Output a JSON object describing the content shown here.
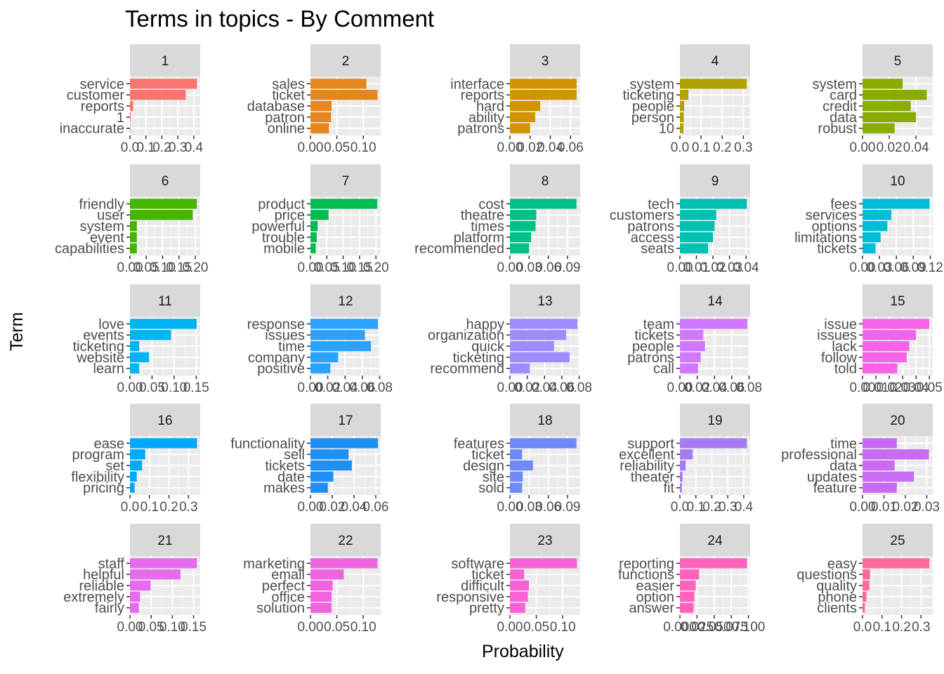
{
  "title": "Terms in topics - By Comment",
  "xlabel": "Probability",
  "ylabel": "Term",
  "chart_data": {
    "type": "bar",
    "orientation": "horizontal",
    "facet_layout": "5 columns x 5 rows, free x scales",
    "title": "Terms in topics - By Comment",
    "xlabel": "Probability",
    "ylabel": "Term",
    "grid": true,
    "legend": "none",
    "facets": [
      {
        "label": "1",
        "color": "#F8766D",
        "xlim": [
          0,
          0.44
        ],
        "terms": [
          "service",
          "customer",
          "reports",
          "1",
          "inaccurate"
        ],
        "values": [
          0.42,
          0.35,
          0.02,
          0.004,
          0.003
        ],
        "ticks": [
          {
            "v": 0,
            "t": "0.0"
          },
          {
            "v": 0.1,
            "t": "0.1"
          },
          {
            "v": 0.2,
            "t": "0.2"
          },
          {
            "v": 0.3,
            "t": "0.3"
          },
          {
            "v": 0.4,
            "t": "0.4"
          }
        ]
      },
      {
        "label": "2",
        "color": "#E7851E",
        "xlim": [
          0,
          0.133
        ],
        "terms": [
          "sales",
          "ticket",
          "database",
          "patron",
          "online"
        ],
        "values": [
          0.106,
          0.127,
          0.04,
          0.039,
          0.035
        ],
        "ticks": [
          {
            "v": 0,
            "t": "0.00"
          },
          {
            "v": 0.05,
            "t": "0.05"
          },
          {
            "v": 0.1,
            "t": "0.10"
          }
        ]
      },
      {
        "label": "3",
        "color": "#D09400",
        "xlim": [
          0,
          0.0695
        ],
        "terms": [
          "interface",
          "reports",
          "hard",
          "ability",
          "patrons"
        ],
        "values": [
          0.066,
          0.066,
          0.03,
          0.025,
          0.02
        ],
        "ticks": [
          {
            "v": 0,
            "t": "0.00"
          },
          {
            "v": 0.02,
            "t": "0.02"
          },
          {
            "v": 0.04,
            "t": "0.04"
          },
          {
            "v": 0.06,
            "t": "0.06"
          }
        ]
      },
      {
        "label": "4",
        "color": "#B2A100",
        "xlim": [
          0,
          0.332
        ],
        "terms": [
          "system",
          "ticketing",
          "people",
          "person",
          "10"
        ],
        "values": [
          0.316,
          0.04,
          0.02,
          0.018,
          0.017
        ],
        "ticks": [
          {
            "v": 0,
            "t": "0.0"
          },
          {
            "v": 0.1,
            "t": "0.1"
          },
          {
            "v": 0.2,
            "t": "0.2"
          },
          {
            "v": 0.3,
            "t": "0.3"
          }
        ]
      },
      {
        "label": "5",
        "color": "#89AC00",
        "xlim": [
          0,
          0.0525
        ],
        "terms": [
          "system",
          "card",
          "credit",
          "data",
          "robust"
        ],
        "values": [
          0.03,
          0.048,
          0.036,
          0.04,
          0.024
        ],
        "ticks": [
          {
            "v": 0,
            "t": "0.00"
          },
          {
            "v": 0.02,
            "t": "0.02"
          },
          {
            "v": 0.04,
            "t": "0.04"
          }
        ]
      },
      {
        "label": "6",
        "color": "#45B500",
        "xlim": [
          0,
          0.215
        ],
        "terms": [
          "friendly",
          "user",
          "system",
          "event",
          "capabilities"
        ],
        "values": [
          0.205,
          0.192,
          0.021,
          0.021,
          0.021
        ],
        "ticks": [
          {
            "v": 0,
            "t": "0.00"
          },
          {
            "v": 0.05,
            "t": "0.05"
          },
          {
            "v": 0.1,
            "t": "0.10"
          },
          {
            "v": 0.15,
            "t": "0.15"
          },
          {
            "v": 0.2,
            "t": "0.20"
          }
        ]
      },
      {
        "label": "7",
        "color": "#00BC51",
        "xlim": [
          0,
          0.2145
        ],
        "terms": [
          "product",
          "price",
          "powerful",
          "trouble",
          "mobile"
        ],
        "values": [
          0.204,
          0.055,
          0.022,
          0.019,
          0.016
        ],
        "ticks": [
          {
            "v": 0,
            "t": "0.00"
          },
          {
            "v": 0.05,
            "t": "0.05"
          },
          {
            "v": 0.1,
            "t": "0.10"
          },
          {
            "v": 0.15,
            "t": "0.15"
          },
          {
            "v": 0.2,
            "t": "0.20"
          }
        ]
      },
      {
        "label": "8",
        "color": "#00C087",
        "xlim": [
          0,
          0.1098
        ],
        "terms": [
          "cost",
          "theatre",
          "times",
          "platform",
          "recommended"
        ],
        "values": [
          0.104,
          0.041,
          0.04,
          0.033,
          0.03
        ],
        "ticks": [
          {
            "v": 0,
            "t": "0.00"
          },
          {
            "v": 0.03,
            "t": "0.03"
          },
          {
            "v": 0.06,
            "t": "0.06"
          },
          {
            "v": 0.09,
            "t": "0.09"
          }
        ]
      },
      {
        "label": "9",
        "color": "#00C0B2",
        "xlim": [
          0,
          0.0425
        ],
        "terms": [
          "tech",
          "customers",
          "patrons",
          "access",
          "seats"
        ],
        "values": [
          0.0405,
          0.022,
          0.021,
          0.02,
          0.017
        ],
        "ticks": [
          {
            "v": 0,
            "t": "0.00"
          },
          {
            "v": 0.01,
            "t": "0.01"
          },
          {
            "v": 0.02,
            "t": "0.02"
          },
          {
            "v": 0.03,
            "t": "0.03"
          },
          {
            "v": 0.04,
            "t": "0.04"
          }
        ]
      },
      {
        "label": "10",
        "color": "#00BCD6",
        "xlim": [
          0,
          0.1245
        ],
        "terms": [
          "fees",
          "services",
          "options",
          "limitations",
          "tickets"
        ],
        "values": [
          0.119,
          0.051,
          0.044,
          0.032,
          0.023
        ],
        "ticks": [
          {
            "v": 0,
            "t": "0.00"
          },
          {
            "v": 0.03,
            "t": "0.03"
          },
          {
            "v": 0.06,
            "t": "0.06"
          },
          {
            "v": 0.09,
            "t": "0.09"
          },
          {
            "v": 0.12,
            "t": "0.12"
          }
        ]
      },
      {
        "label": "11",
        "color": "#00B3F2",
        "xlim": [
          0,
          0.159
        ],
        "terms": [
          "love",
          "events",
          "ticketing",
          "website",
          "learn"
        ],
        "values": [
          0.151,
          0.093,
          0.021,
          0.043,
          0.021
        ],
        "ticks": [
          {
            "v": 0,
            "t": "0.00"
          },
          {
            "v": 0.05,
            "t": "0.05"
          },
          {
            "v": 0.1,
            "t": "0.10"
          },
          {
            "v": 0.15,
            "t": "0.15"
          }
        ]
      },
      {
        "label": "12",
        "color": "#29A3FF",
        "xlim": [
          0,
          0.0812
        ],
        "terms": [
          "response",
          "issues",
          "time",
          "company",
          "positive"
        ],
        "values": [
          0.078,
          0.063,
          0.07,
          0.032,
          0.023
        ],
        "ticks": [
          {
            "v": 0,
            "t": "0.00"
          },
          {
            "v": 0.02,
            "t": "0.02"
          },
          {
            "v": 0.04,
            "t": "0.04"
          },
          {
            "v": 0.06,
            "t": "0.06"
          },
          {
            "v": 0.08,
            "t": "0.08"
          }
        ]
      },
      {
        "label": "13",
        "color": "#9C8DFF",
        "xlim": [
          0,
          0.0812
        ],
        "terms": [
          "happy",
          "organization",
          "quick",
          "ticketing",
          "recommend"
        ],
        "values": [
          0.078,
          0.065,
          0.051,
          0.069,
          0.023
        ],
        "ticks": [
          {
            "v": 0,
            "t": "0.00"
          },
          {
            "v": 0.02,
            "t": "0.02"
          },
          {
            "v": 0.04,
            "t": "0.04"
          },
          {
            "v": 0.06,
            "t": "0.06"
          },
          {
            "v": 0.08,
            "t": "0.08"
          }
        ]
      },
      {
        "label": "14",
        "color": "#D277FF",
        "xlim": [
          0,
          0.0812
        ],
        "terms": [
          "team",
          "tickets",
          "people",
          "patrons",
          "call"
        ],
        "values": [
          0.078,
          0.027,
          0.029,
          0.024,
          0.021
        ],
        "ticks": [
          {
            "v": 0,
            "t": "0.00"
          },
          {
            "v": 0.02,
            "t": "0.02"
          },
          {
            "v": 0.04,
            "t": "0.04"
          },
          {
            "v": 0.06,
            "t": "0.06"
          },
          {
            "v": 0.08,
            "t": "0.08"
          }
        ]
      },
      {
        "label": "15",
        "color": "#F365E6",
        "xlim": [
          0,
          0.0525
        ],
        "terms": [
          "issue",
          "issues",
          "lack",
          "follow",
          "told"
        ],
        "values": [
          0.05,
          0.04,
          0.035,
          0.033,
          0.026
        ],
        "ticks": [
          {
            "v": 0,
            "t": "0.00"
          },
          {
            "v": 0.01,
            "t": "0.01"
          },
          {
            "v": 0.02,
            "t": "0.02"
          },
          {
            "v": 0.03,
            "t": "0.03"
          },
          {
            "v": 0.04,
            "t": "0.04"
          },
          {
            "v": 0.05,
            "t": "0.05"
          }
        ]
      },
      {
        "label": "16",
        "color": "#00A9FF",
        "xlim": [
          0,
          0.36
        ],
        "terms": [
          "ease",
          "program",
          "set",
          "flexibility",
          "pricing"
        ],
        "values": [
          0.344,
          0.078,
          0.062,
          0.035,
          0.024
        ],
        "ticks": [
          {
            "v": 0,
            "t": "0.0"
          },
          {
            "v": 0.1,
            "t": "0.1"
          },
          {
            "v": 0.2,
            "t": "0.2"
          },
          {
            "v": 0.3,
            "t": "0.3"
          }
        ]
      },
      {
        "label": "17",
        "color": "#1E8FF5",
        "xlim": [
          0,
          0.0645
        ],
        "terms": [
          "functionality",
          "sell",
          "tickets",
          "date",
          "makes"
        ],
        "values": [
          0.062,
          0.035,
          0.038,
          0.021,
          0.016
        ],
        "ticks": [
          {
            "v": 0,
            "t": "0.00"
          },
          {
            "v": 0.02,
            "t": "0.02"
          },
          {
            "v": 0.04,
            "t": "0.04"
          },
          {
            "v": 0.06,
            "t": "0.06"
          }
        ]
      },
      {
        "label": "18",
        "color": "#6E89F8",
        "xlim": [
          0,
          0.1098
        ],
        "terms": [
          "features",
          "ticket",
          "design",
          "site",
          "sold"
        ],
        "values": [
          0.104,
          0.019,
          0.036,
          0.02,
          0.019
        ],
        "ticks": [
          {
            "v": 0,
            "t": "0.00"
          },
          {
            "v": 0.03,
            "t": "0.03"
          },
          {
            "v": 0.06,
            "t": "0.06"
          },
          {
            "v": 0.09,
            "t": "0.09"
          }
        ]
      },
      {
        "label": "19",
        "color": "#A87BF5",
        "xlim": [
          0,
          0.44
        ],
        "terms": [
          "support",
          "excellent",
          "reliability",
          "theater",
          "fit"
        ],
        "values": [
          0.42,
          0.08,
          0.036,
          0.016,
          0.012
        ],
        "ticks": [
          {
            "v": 0,
            "t": "0.0"
          },
          {
            "v": 0.1,
            "t": "0.1"
          },
          {
            "v": 0.2,
            "t": "0.2"
          },
          {
            "v": 0.3,
            "t": "0.3"
          },
          {
            "v": 0.4,
            "t": "0.4"
          }
        ]
      },
      {
        "label": "20",
        "color": "#C86AF2",
        "xlim": [
          0,
          0.0328
        ],
        "terms": [
          "time",
          "professional",
          "data",
          "updates",
          "feature"
        ],
        "values": [
          0.016,
          0.031,
          0.015,
          0.024,
          0.016
        ],
        "ticks": [
          {
            "v": 0,
            "t": "0.00"
          },
          {
            "v": 0.01,
            "t": "0.01"
          },
          {
            "v": 0.02,
            "t": "0.02"
          },
          {
            "v": 0.03,
            "t": "0.03"
          }
        ]
      },
      {
        "label": "21",
        "color": "#E66BEF",
        "xlim": [
          0,
          0.1656
        ],
        "terms": [
          "staff",
          "helpful",
          "reliable",
          "extremely",
          "fairly"
        ],
        "values": [
          0.158,
          0.119,
          0.049,
          0.024,
          0.021
        ],
        "ticks": [
          {
            "v": 0,
            "t": "0.00"
          },
          {
            "v": 0.05,
            "t": "0.05"
          },
          {
            "v": 0.1,
            "t": "0.10"
          },
          {
            "v": 0.15,
            "t": "0.15"
          }
        ]
      },
      {
        "label": "22",
        "color": "#F064E1",
        "xlim": [
          0,
          0.133
        ],
        "terms": [
          "marketing",
          "email",
          "perfect",
          "office",
          "solution"
        ],
        "values": [
          0.127,
          0.063,
          0.042,
          0.04,
          0.04
        ],
        "ticks": [
          {
            "v": 0,
            "t": "0.00"
          },
          {
            "v": 0.05,
            "t": "0.05"
          },
          {
            "v": 0.1,
            "t": "0.10"
          }
        ]
      },
      {
        "label": "23",
        "color": "#FB61D7",
        "xlim": [
          0,
          0.133
        ],
        "terms": [
          "software",
          "ticket",
          "difficult",
          "responsive",
          "pretty"
        ],
        "values": [
          0.127,
          0.027,
          0.036,
          0.034,
          0.029
        ],
        "ticks": [
          {
            "v": 0,
            "t": "0.00"
          },
          {
            "v": 0.05,
            "t": "0.05"
          },
          {
            "v": 0.1,
            "t": "0.10"
          }
        ]
      },
      {
        "label": "24",
        "color": "#FF62BC",
        "xlim": [
          0,
          0.1025
        ],
        "terms": [
          "reporting",
          "functions",
          "easier",
          "option",
          "answer"
        ],
        "values": [
          0.098,
          0.028,
          0.023,
          0.021,
          0.02
        ],
        "ticks": [
          {
            "v": 0,
            "t": "0.000"
          },
          {
            "v": 0.025,
            "t": "0.025"
          },
          {
            "v": 0.05,
            "t": "0.050"
          },
          {
            "v": 0.075,
            "t": "0.075"
          },
          {
            "v": 0.1,
            "t": "0.100"
          }
        ]
      },
      {
        "label": "25",
        "color": "#FF6A98",
        "xlim": [
          0,
          0.36
        ],
        "terms": [
          "easy",
          "questions",
          "quality",
          "phone",
          "clients"
        ],
        "values": [
          0.343,
          0.038,
          0.035,
          0.02,
          0.012
        ],
        "ticks": [
          {
            "v": 0,
            "t": "0.0"
          },
          {
            "v": 0.1,
            "t": "0.1"
          },
          {
            "v": 0.2,
            "t": "0.2"
          },
          {
            "v": 0.3,
            "t": "0.3"
          }
        ]
      }
    ]
  }
}
